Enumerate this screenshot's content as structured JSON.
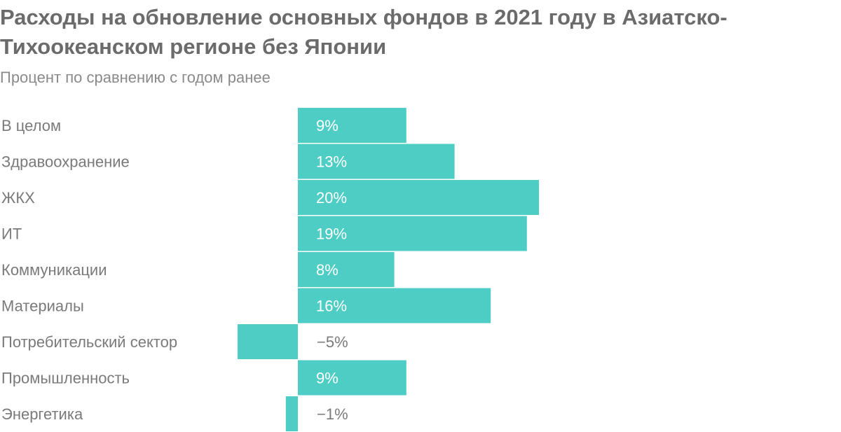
{
  "header": {
    "title": "Расходы на обновление основных фондов в 2021 году в Азиатско-Тихоокеанском регионе без Японии",
    "subtitle": "Процент по сравнению с годом ранее"
  },
  "colors": {
    "bar": "#4ecdc4",
    "label_inside": "#ffffff",
    "label_outside": "#7a7a7a"
  },
  "chart_data": {
    "type": "bar",
    "orientation": "horizontal",
    "title": "Расходы на обновление основных фондов в 2021 году в Азиатско-Тихоокеанском регионе без Японии",
    "subtitle": "Процент по сравнению с годом ранее",
    "categories": [
      "В целом",
      "Здравоохранение",
      "ЖКХ",
      "ИТ",
      "Коммуникации",
      "Материалы",
      "Потребительский сектор",
      "Промышленность",
      "Энергетика"
    ],
    "values": [
      9,
      13,
      20,
      19,
      8,
      16,
      -5,
      9,
      -1
    ],
    "value_labels": [
      "9%",
      "13%",
      "20%",
      "19%",
      "8%",
      "16%",
      "−5%",
      "9%",
      "−1%"
    ],
    "unit": "%",
    "xlim": [
      -5,
      20
    ],
    "grid": false,
    "legend": "none"
  }
}
